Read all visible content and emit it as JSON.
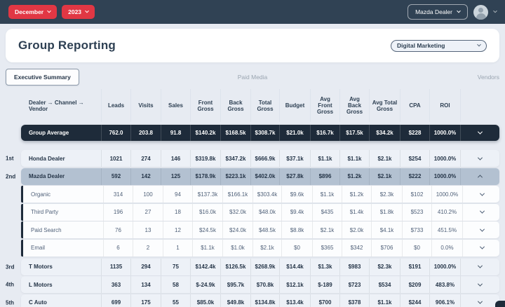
{
  "topbar": {
    "month": "December",
    "year": "2023",
    "dealer_button": "Mazda Dealer"
  },
  "header": {
    "title": "Group Reporting",
    "filter_selected": "Digital Marketing"
  },
  "tabs": [
    {
      "label": "Executive Summary",
      "active": true
    },
    {
      "label": "Paid Media",
      "active": false
    },
    {
      "label": "Vendors",
      "active": false
    }
  ],
  "colors": {
    "topbar": "#304254",
    "accent_red": "#e13744",
    "dark_navy": "#1e2b3a",
    "selected_row": "#b3c1d1"
  },
  "table": {
    "columns": [
      "Dealer → Channel → Vendor",
      "Leads",
      "Visits",
      "Sales",
      "Front Gross",
      "Back Gross",
      "Total Gross",
      "Budget",
      "Avg Front Gross",
      "Avg Back Gross",
      "Avg Total Gross",
      "CPA",
      "ROI"
    ],
    "group_average": {
      "label": "Group Average",
      "values": [
        "762.0",
        "203.8",
        "91.8",
        "$140.2k",
        "$168.5k",
        "$308.7k",
        "$21.0k",
        "$16.7k",
        "$17.5k",
        "$34.2k",
        "$228",
        "1000.0%"
      ],
      "chevron": "down"
    },
    "rows": [
      {
        "rank": "1st",
        "name": "Honda Dealer",
        "type": "dealer",
        "chevron": "down",
        "values": [
          "1021",
          "274",
          "146",
          "$319.8k",
          "$347.2k",
          "$666.9k",
          "$37.1k",
          "$1.1k",
          "$1.1k",
          "$2.1k",
          "$254",
          "1000.0%"
        ]
      },
      {
        "rank": "2nd",
        "name": "Mazda Dealer",
        "type": "dealer",
        "selected": true,
        "chevron": "up",
        "values": [
          "592",
          "142",
          "125",
          "$178.9k",
          "$223.1k",
          "$402.0k",
          "$27.8k",
          "$896",
          "$1.2k",
          "$2.1k",
          "$222",
          "1000.0%"
        ]
      },
      {
        "rank": "",
        "name": "Organic",
        "type": "channel",
        "chevron": "down",
        "values": [
          "314",
          "100",
          "94",
          "$137.3k",
          "$166.1k",
          "$303.4k",
          "$9.6k",
          "$1.1k",
          "$1.2k",
          "$2.3k",
          "$102",
          "1000.0%"
        ]
      },
      {
        "rank": "",
        "name": "Third Party",
        "type": "channel",
        "chevron": "down",
        "values": [
          "196",
          "27",
          "18",
          "$16.0k",
          "$32.0k",
          "$48.0k",
          "$9.4k",
          "$435",
          "$1.4k",
          "$1.8k",
          "$523",
          "410.2%"
        ]
      },
      {
        "rank": "",
        "name": "Paid Search",
        "type": "channel",
        "chevron": "down",
        "values": [
          "76",
          "13",
          "12",
          "$24.5k",
          "$24.0k",
          "$48.5k",
          "$8.8k",
          "$2.1k",
          "$2.0k",
          "$4.1k",
          "$733",
          "451.5%"
        ]
      },
      {
        "rank": "",
        "name": "Email",
        "type": "channel",
        "chevron": "down",
        "values": [
          "6",
          "2",
          "1",
          "$1.1k",
          "$1.0k",
          "$2.1k",
          "$0",
          "$365",
          "$342",
          "$706",
          "$0",
          "0.0%"
        ]
      },
      {
        "rank": "3rd",
        "name": "T Motors",
        "type": "dealer",
        "gap": true,
        "chevron": "down",
        "values": [
          "1135",
          "294",
          "75",
          "$142.4k",
          "$126.5k",
          "$268.9k",
          "$14.4k",
          "$1.3k",
          "$983",
          "$2.3k",
          "$191",
          "1000.0%"
        ]
      },
      {
        "rank": "4th",
        "name": "L Motors",
        "type": "dealer",
        "chevron": "down",
        "values": [
          "363",
          "134",
          "58",
          "$-24.9k",
          "$95.7k",
          "$70.8k",
          "$12.1k",
          "$-189",
          "$723",
          "$534",
          "$209",
          "483.8%"
        ]
      },
      {
        "rank": "5th",
        "name": "C Auto",
        "type": "dealer",
        "chevron": "down",
        "values": [
          "699",
          "175",
          "55",
          "$85.0k",
          "$49.8k",
          "$134.8k",
          "$13.4k",
          "$700",
          "$378",
          "$1.1k",
          "$244",
          "906.1%"
        ]
      }
    ]
  }
}
